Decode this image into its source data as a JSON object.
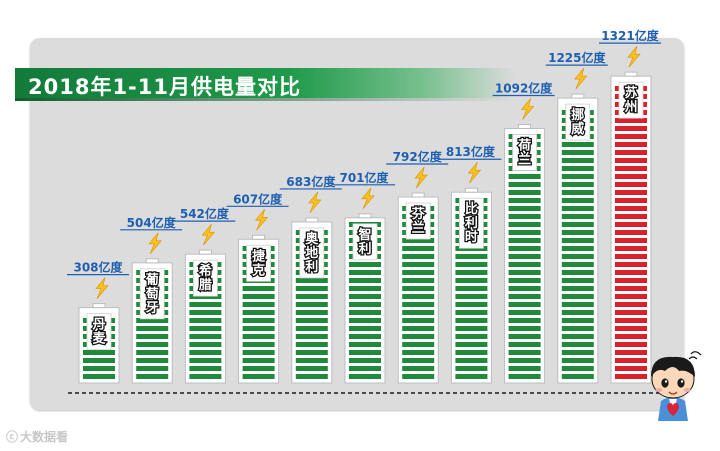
{
  "chart_data": {
    "type": "bar",
    "title": "2018年1-11月供电量对比",
    "unit": "亿度",
    "categories": [
      "丹麦",
      "葡萄牙",
      "希腊",
      "捷克",
      "奥地利",
      "智利",
      "芬兰",
      "比利时",
      "荷兰",
      "挪威",
      "苏州"
    ],
    "values": [
      308,
      504,
      542,
      607,
      683,
      701,
      792,
      813,
      1092,
      1225,
      1321
    ],
    "value_labels": [
      "308亿度",
      "504亿度",
      "542亿度",
      "607亿度",
      "683亿度",
      "701亿度",
      "792亿度",
      "813亿度",
      "1092亿度",
      "1225亿度",
      "1321亿度"
    ],
    "highlight_category": "苏州",
    "colors": {
      "bar": "#1f8a3c",
      "highlight": "#d9202b",
      "value_text": "#1d5fb0",
      "lightning": "#f7c21b"
    }
  },
  "watermark": "大数据看"
}
